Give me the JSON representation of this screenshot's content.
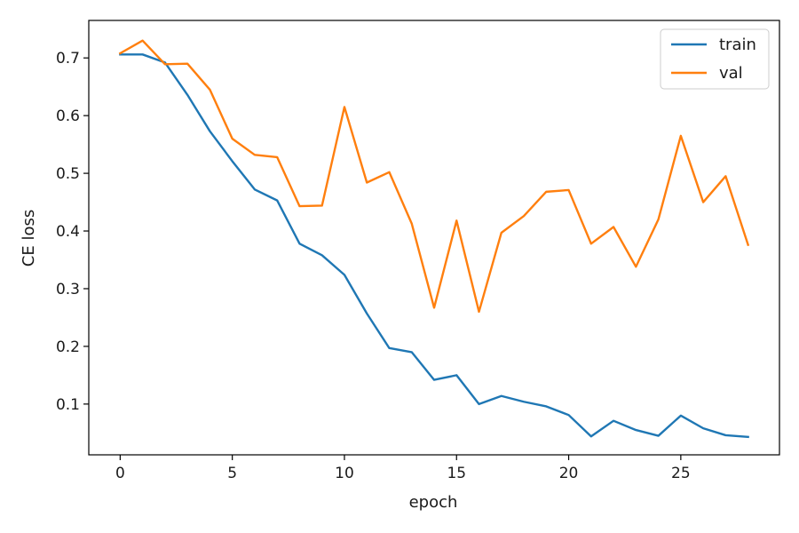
{
  "chart_data": {
    "type": "line",
    "title": "",
    "xlabel": "epoch",
    "ylabel": "CE loss",
    "xlim": [
      -1.4,
      29.4
    ],
    "ylim": [
      0.012,
      0.765
    ],
    "xticks": [
      0,
      5,
      10,
      15,
      20,
      25
    ],
    "xtick_labels": [
      "0",
      "5",
      "10",
      "15",
      "20",
      "25"
    ],
    "yticks": [
      0.1,
      0.2,
      0.3,
      0.4,
      0.5,
      0.6,
      0.7
    ],
    "ytick_labels": [
      "0.1",
      "0.2",
      "0.3",
      "0.4",
      "0.5",
      "0.6",
      "0.7"
    ],
    "grid": false,
    "legend_position": "top-right",
    "x": [
      0,
      1,
      2,
      3,
      4,
      5,
      6,
      7,
      8,
      9,
      10,
      11,
      12,
      13,
      14,
      15,
      16,
      17,
      18,
      19,
      20,
      21,
      22,
      23,
      24,
      25,
      26,
      27,
      28
    ],
    "series": [
      {
        "name": "train",
        "color": "#1f77b4",
        "values": [
          0.706,
          0.706,
          0.692,
          0.636,
          0.573,
          0.521,
          0.472,
          0.453,
          0.378,
          0.358,
          0.324,
          0.257,
          0.197,
          0.19,
          0.142,
          0.15,
          0.1,
          0.114,
          0.104,
          0.096,
          0.081,
          0.044,
          0.071,
          0.055,
          0.045,
          0.08,
          0.058,
          0.046,
          0.043
        ]
      },
      {
        "name": "val",
        "color": "#ff7f0e",
        "values": [
          0.708,
          0.73,
          0.689,
          0.69,
          0.645,
          0.56,
          0.532,
          0.528,
          0.443,
          0.444,
          0.615,
          0.484,
          0.502,
          0.413,
          0.267,
          0.418,
          0.26,
          0.397,
          0.426,
          0.468,
          0.471,
          0.378,
          0.407,
          0.338,
          0.42,
          0.565,
          0.45,
          0.495,
          0.376
        ]
      }
    ]
  }
}
